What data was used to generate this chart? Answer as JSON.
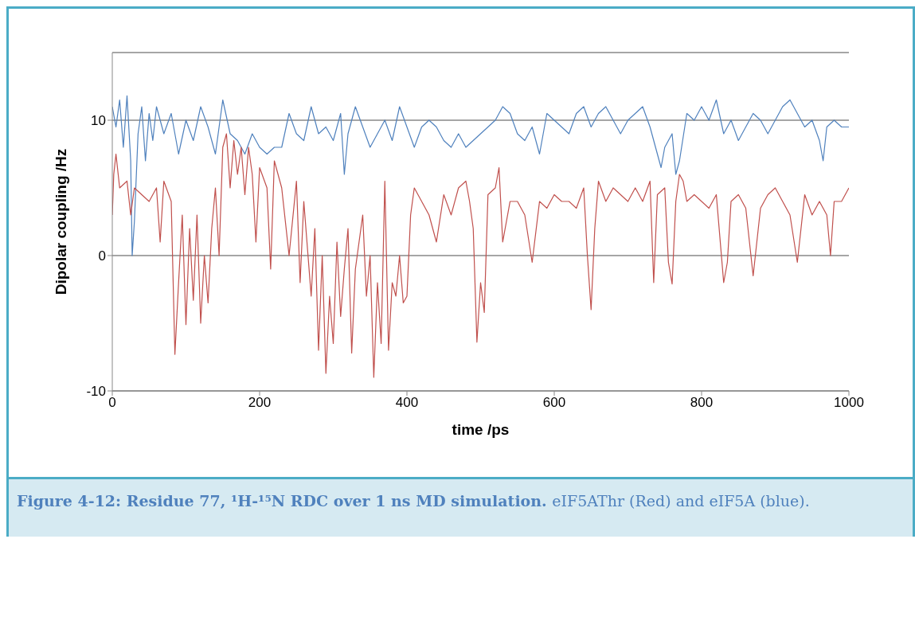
{
  "chart_data": {
    "type": "line",
    "xlabel": "time /ps",
    "ylabel": "Dipolar coupling /Hz",
    "xlim": [
      0,
      1000
    ],
    "xticks": [
      0,
      200,
      400,
      600,
      800,
      1000
    ],
    "ylim": [
      -10,
      15
    ],
    "yticks": [
      -10,
      0,
      10
    ],
    "grid": "y",
    "marker": "none",
    "line_style": "solid",
    "annotations": [
      "Figure 4-12: Residue 77, ¹H-¹⁵N RDC over 1 ns MD simulation.",
      "eIF5AThr (Red) and eIF5A (blue)."
    ],
    "series": [
      {
        "color": "#4f81bd",
        "x": [
          0,
          5,
          10,
          15,
          20,
          25,
          27,
          30,
          35,
          40,
          45,
          50,
          55,
          60,
          70,
          80,
          90,
          100,
          110,
          120,
          130,
          140,
          150,
          160,
          170,
          180,
          190,
          200,
          210,
          220,
          230,
          240,
          250,
          260,
          270,
          280,
          290,
          300,
          310,
          315,
          320,
          330,
          340,
          350,
          360,
          370,
          380,
          390,
          400,
          410,
          420,
          430,
          440,
          450,
          460,
          470,
          480,
          490,
          500,
          510,
          520,
          530,
          540,
          550,
          560,
          570,
          580,
          590,
          600,
          610,
          620,
          630,
          640,
          650,
          660,
          670,
          680,
          690,
          700,
          710,
          720,
          730,
          740,
          745,
          750,
          760,
          765,
          770,
          780,
          790,
          800,
          810,
          820,
          830,
          840,
          850,
          860,
          870,
          880,
          890,
          900,
          910,
          920,
          930,
          940,
          950,
          960,
          965,
          970,
          980,
          990,
          1000
        ],
        "values": [
          11,
          9.5,
          11.5,
          8,
          11.8,
          7,
          0,
          2.5,
          9,
          11,
          7,
          10.5,
          8.5,
          11,
          9,
          10.5,
          7.5,
          10,
          8.5,
          11,
          9.5,
          7.5,
          11.5,
          9,
          8.5,
          7.5,
          9,
          8,
          7.5,
          8,
          8,
          10.5,
          9,
          8.5,
          11,
          9,
          9.5,
          8.5,
          10.5,
          6,
          9,
          11,
          9.5,
          8,
          9,
          10,
          8.5,
          11,
          9.5,
          8,
          9.5,
          10,
          9.5,
          8.5,
          8,
          9,
          8,
          8.5,
          9,
          9.5,
          10,
          11,
          10.5,
          9,
          8.5,
          9.5,
          7.5,
          10.5,
          10,
          9.5,
          9,
          10.5,
          11,
          9.5,
          10.5,
          11,
          10,
          9,
          10,
          10.5,
          11,
          9.5,
          7.5,
          6.5,
          8,
          9,
          6,
          7,
          10.5,
          10,
          11,
          10,
          11.5,
          9,
          10,
          8.5,
          9.5,
          10.5,
          10,
          9,
          10,
          11,
          11.5,
          10.5,
          9.5,
          10,
          8.5,
          7,
          9.5,
          10,
          9.5,
          9.5
        ]
      },
      {
        "color": "#c0504d",
        "x": [
          0,
          2,
          5,
          10,
          20,
          25,
          30,
          40,
          50,
          60,
          65,
          70,
          80,
          85,
          90,
          95,
          100,
          105,
          110,
          115,
          120,
          125,
          130,
          135,
          140,
          145,
          150,
          155,
          160,
          165,
          170,
          175,
          180,
          185,
          190,
          195,
          200,
          210,
          215,
          220,
          230,
          240,
          250,
          255,
          260,
          270,
          275,
          280,
          285,
          290,
          295,
          300,
          305,
          310,
          315,
          320,
          325,
          330,
          340,
          345,
          350,
          355,
          360,
          365,
          370,
          375,
          380,
          385,
          390,
          395,
          400,
          405,
          410,
          420,
          430,
          440,
          450,
          460,
          470,
          480,
          485,
          490,
          495,
          500,
          505,
          510,
          520,
          525,
          530,
          540,
          550,
          560,
          570,
          580,
          590,
          600,
          610,
          620,
          630,
          640,
          645,
          650,
          655,
          660,
          670,
          680,
          690,
          700,
          710,
          720,
          730,
          735,
          740,
          750,
          755,
          760,
          765,
          770,
          775,
          780,
          790,
          800,
          810,
          820,
          830,
          835,
          840,
          850,
          860,
          870,
          880,
          890,
          900,
          910,
          920,
          930,
          940,
          950,
          960,
          970,
          975,
          980,
          990,
          1000
        ],
        "values": [
          3,
          6,
          7.5,
          5,
          5.5,
          3,
          5,
          4.5,
          4,
          5,
          1,
          5.5,
          4,
          -7.3,
          -2,
          3,
          -5.1,
          2,
          -3.3,
          3,
          -5,
          0,
          -3.5,
          2,
          5,
          0,
          8,
          9,
          5,
          8.5,
          6,
          8,
          4.5,
          8,
          6,
          1,
          6.5,
          5,
          -1,
          7,
          5,
          0,
          5.5,
          -2,
          4,
          -3,
          2,
          -7,
          0,
          -8.7,
          -3,
          -6.5,
          1,
          -4.5,
          -1,
          2,
          -7.2,
          -1,
          3,
          -3,
          0,
          -9,
          -2,
          -6.5,
          5.5,
          -7,
          -2,
          -3,
          0,
          -3.5,
          -3,
          3,
          5,
          4,
          3,
          1,
          4.5,
          3,
          5,
          5.5,
          4,
          2,
          -6.4,
          -2,
          -4.2,
          4.5,
          5,
          6.5,
          1,
          4,
          4,
          3,
          -0.5,
          4,
          3.5,
          4.5,
          4,
          4,
          3.5,
          5,
          0,
          -4,
          2,
          5.5,
          4,
          5,
          4.5,
          4,
          5,
          4,
          5.5,
          -2,
          4.5,
          5,
          -0.5,
          -2.1,
          4,
          6,
          5.5,
          4,
          4.5,
          4,
          3.5,
          4.5,
          -2,
          -0.5,
          4,
          4.5,
          3.5,
          -1.5,
          3.5,
          4.5,
          5,
          4,
          3,
          -0.5,
          4.5,
          3,
          4,
          3,
          0,
          4,
          4,
          5
        ]
      }
    ]
  }
}
